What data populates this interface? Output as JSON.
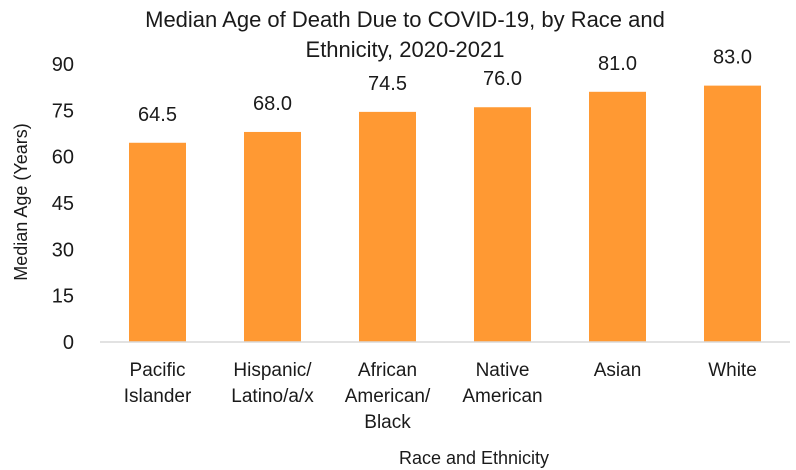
{
  "chart_data": {
    "type": "bar",
    "title": "Median Age of Death Due to COVID-19, by Race and Ethnicity, 2020-2021",
    "title_lines": [
      "Median Age of Death Due to COVID-19, by Race and",
      "Ethnicity, 2020-2021"
    ],
    "xlabel": "Race and Ethnicity",
    "ylabel": "Median Age (Years)",
    "ylim": [
      0,
      90
    ],
    "yticks": [
      "0",
      "15",
      "30",
      "45",
      "60",
      "75",
      "90"
    ],
    "categories": [
      [
        "Pacific",
        "Islander"
      ],
      [
        "Hispanic/",
        "Latino/a/x"
      ],
      [
        "African",
        "American/",
        "Black"
      ],
      [
        "Native",
        "American"
      ],
      [
        "Asian"
      ],
      [
        "White"
      ]
    ],
    "values": [
      64.5,
      68.0,
      74.5,
      76.0,
      81.0,
      83.0
    ],
    "data_labels": [
      "64.5",
      "68.0",
      "74.5",
      "76.0",
      "81.0",
      "83.0"
    ],
    "bar_color": "#FF9933",
    "axis_color": "#D9D9D9",
    "grid": false,
    "legend": "none"
  }
}
